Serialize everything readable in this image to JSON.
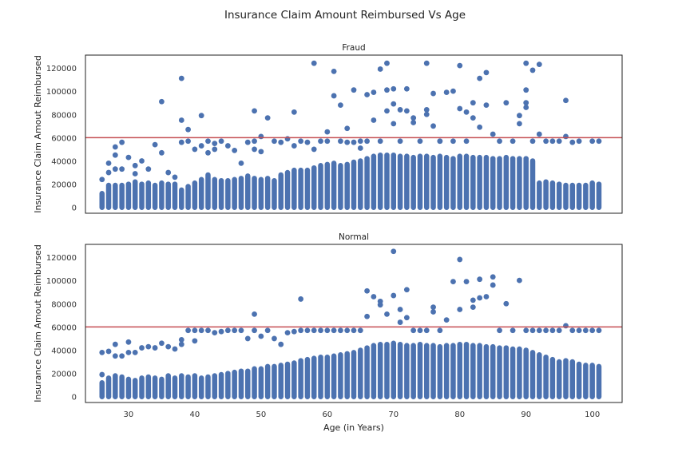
{
  "chart_data": {
    "type": "scatter",
    "title": "Insurance Claim Amount Reimbursed Vs Age",
    "xlabel": "Age (in Years)",
    "ylabel": "Insurance Claim Amout Reimbursed",
    "xlim": [
      23.5,
      104.5
    ],
    "ylim": [
      -5000,
      131000
    ],
    "x_ticks": [
      30,
      40,
      50,
      60,
      70,
      80,
      90,
      100
    ],
    "y_ticks": [
      0,
      20000,
      40000,
      60000,
      80000,
      100000,
      120000
    ],
    "x_tick_labels": [
      "30",
      "40",
      "50",
      "60",
      "70",
      "80",
      "90",
      "100"
    ],
    "y_tick_labels": [
      "0",
      "20000",
      "40000",
      "60000",
      "80000",
      "100000",
      "120000"
    ],
    "reference_line": {
      "y": 60000,
      "color": "#c44e52"
    },
    "point_color": "#4c72b0",
    "grid": false,
    "panels": [
      {
        "title": "Fraud",
        "column_tops": {
          "x": [
            26,
            27,
            28,
            29,
            30,
            31,
            32,
            33,
            34,
            35,
            36,
            37,
            38,
            39,
            40,
            41,
            42,
            43,
            44,
            45,
            46,
            47,
            48,
            49,
            50,
            51,
            52,
            53,
            54,
            55,
            56,
            57,
            58,
            59,
            60,
            61,
            62,
            63,
            64,
            65,
            66,
            67,
            68,
            69,
            70,
            71,
            72,
            73,
            74,
            75,
            76,
            77,
            78,
            79,
            80,
            81,
            82,
            83,
            84,
            85,
            86,
            87,
            88,
            89,
            90,
            91,
            92,
            93,
            94,
            95,
            96,
            97,
            98,
            99,
            100,
            101
          ],
          "y": [
            12000,
            19000,
            19000,
            19000,
            20000,
            22000,
            20000,
            21000,
            19000,
            21000,
            20000,
            20000,
            15000,
            18000,
            21000,
            24000,
            28000,
            24000,
            23000,
            23000,
            24000,
            25000,
            27000,
            25000,
            24000,
            25000,
            23000,
            28000,
            30000,
            32000,
            32000,
            32000,
            34000,
            36000,
            37000,
            38000,
            36000,
            37000,
            39000,
            40000,
            42000,
            44000,
            45000,
            45000,
            45000,
            44000,
            44000,
            43000,
            44000,
            44000,
            43000,
            44000,
            43000,
            42000,
            44000,
            44000,
            43000,
            43000,
            43000,
            42000,
            42000,
            43000,
            42000,
            42000,
            42000,
            40000,
            21000,
            22000,
            21000,
            20000,
            19000,
            19000,
            19000,
            19000,
            21000,
            20000
          ]
        },
        "points": {
          "x": [
            26,
            27,
            27,
            28,
            28,
            28,
            29,
            29,
            30,
            31,
            31,
            32,
            33,
            34,
            35,
            35,
            36,
            37,
            38,
            38,
            38,
            39,
            39,
            40,
            41,
            41,
            42,
            42,
            43,
            43,
            44,
            45,
            46,
            47,
            48,
            49,
            49,
            49,
            50,
            50,
            51,
            52,
            53,
            54,
            55,
            55,
            56,
            57,
            58,
            58,
            59,
            60,
            60,
            61,
            61,
            62,
            62,
            63,
            63,
            64,
            64,
            65,
            65,
            66,
            66,
            67,
            67,
            68,
            68,
            69,
            69,
            69,
            70,
            70,
            70,
            71,
            71,
            72,
            72,
            73,
            73,
            74,
            75,
            75,
            75,
            76,
            76,
            77,
            77,
            78,
            79,
            79,
            80,
            80,
            81,
            81,
            82,
            82,
            83,
            83,
            84,
            84,
            85,
            86,
            87,
            88,
            89,
            89,
            90,
            90,
            90,
            90,
            91,
            91,
            92,
            92,
            93,
            94,
            95,
            96,
            96,
            97,
            98,
            100,
            101
          ],
          "y": [
            24000,
            30000,
            38000,
            45000,
            52000,
            33000,
            56000,
            33000,
            43000,
            36000,
            29000,
            40000,
            33000,
            54000,
            91000,
            47000,
            30000,
            26000,
            111000,
            75000,
            56000,
            67000,
            57000,
            50000,
            79000,
            53000,
            57000,
            47000,
            55000,
            50000,
            57000,
            53000,
            49000,
            38000,
            56000,
            83000,
            57000,
            50000,
            61000,
            48000,
            77000,
            57000,
            56000,
            59000,
            82000,
            53000,
            57000,
            56000,
            124000,
            50000,
            57000,
            65000,
            57000,
            117000,
            96000,
            88000,
            57000,
            68000,
            56000,
            101000,
            56000,
            57000,
            51000,
            97000,
            57000,
            99000,
            75000,
            119000,
            57000,
            124000,
            101000,
            83000,
            72000,
            102000,
            89000,
            84000,
            57000,
            102000,
            83000,
            77000,
            73000,
            57000,
            124000,
            84000,
            80000,
            70000,
            98000,
            57000,
            57000,
            99000,
            57000,
            100000,
            85000,
            122000,
            82000,
            57000,
            90000,
            77000,
            111000,
            69000,
            116000,
            88000,
            63000,
            57000,
            90000,
            57000,
            79000,
            72000,
            124000,
            101000,
            90000,
            86000,
            118000,
            57000,
            123000,
            63000,
            57000,
            57000,
            57000,
            92000,
            61000,
            56000,
            57000,
            57000,
            57000
          ]
        }
      },
      {
        "title": "Normal",
        "column_tops": {
          "x": [
            26,
            27,
            28,
            29,
            30,
            31,
            32,
            33,
            34,
            35,
            36,
            37,
            38,
            39,
            40,
            41,
            42,
            43,
            44,
            45,
            46,
            47,
            48,
            49,
            50,
            51,
            52,
            53,
            54,
            55,
            56,
            57,
            58,
            59,
            60,
            61,
            62,
            63,
            64,
            65,
            66,
            67,
            68,
            69,
            70,
            71,
            72,
            73,
            74,
            75,
            76,
            77,
            78,
            79,
            80,
            81,
            82,
            83,
            84,
            85,
            86,
            87,
            88,
            89,
            90,
            91,
            92,
            93,
            94,
            95,
            96,
            97,
            98,
            99,
            100,
            101
          ],
          "y": [
            12000,
            16000,
            18000,
            17000,
            15000,
            14000,
            16000,
            17000,
            16000,
            15000,
            18000,
            16000,
            18000,
            17000,
            18000,
            16000,
            17000,
            18000,
            19000,
            20000,
            21000,
            22000,
            22000,
            24000,
            24000,
            26000,
            26000,
            27000,
            28000,
            29000,
            31000,
            32000,
            33000,
            34000,
            34000,
            35000,
            36000,
            37000,
            38000,
            40000,
            42000,
            44000,
            45000,
            45000,
            46000,
            45000,
            44000,
            44000,
            45000,
            44000,
            44000,
            43000,
            44000,
            44000,
            45000,
            45000,
            44000,
            44000,
            43000,
            43000,
            42000,
            42000,
            41000,
            41000,
            40000,
            38000,
            36000,
            34000,
            32000,
            30000,
            31000,
            30000,
            28000,
            27000,
            27000,
            26000
          ]
        },
        "points": {
          "x": [
            26,
            26,
            27,
            28,
            28,
            29,
            30,
            30,
            31,
            32,
            33,
            34,
            35,
            36,
            37,
            38,
            38,
            39,
            40,
            40,
            41,
            42,
            43,
            44,
            45,
            46,
            47,
            48,
            49,
            49,
            50,
            51,
            52,
            53,
            54,
            55,
            56,
            56,
            57,
            58,
            59,
            60,
            61,
            62,
            63,
            64,
            65,
            66,
            66,
            67,
            68,
            68,
            69,
            70,
            70,
            71,
            71,
            72,
            72,
            73,
            74,
            75,
            76,
            76,
            77,
            78,
            79,
            80,
            80,
            81,
            82,
            82,
            83,
            83,
            84,
            85,
            85,
            86,
            87,
            88,
            89,
            90,
            91,
            92,
            93,
            94,
            95,
            96,
            97,
            98,
            99,
            100,
            101
          ],
          "y": [
            38000,
            19000,
            39000,
            35000,
            45000,
            35000,
            47000,
            38000,
            38000,
            42000,
            43000,
            42000,
            46000,
            43000,
            41000,
            49000,
            45000,
            57000,
            57000,
            48000,
            57000,
            57000,
            55000,
            56000,
            57000,
            57000,
            57000,
            50000,
            71000,
            57000,
            52000,
            57000,
            50000,
            45000,
            55000,
            56000,
            84000,
            57000,
            57000,
            57000,
            57000,
            57000,
            57000,
            57000,
            57000,
            57000,
            57000,
            91000,
            69000,
            86000,
            82000,
            79000,
            71000,
            125000,
            87000,
            75000,
            64000,
            92000,
            68000,
            57000,
            57000,
            57000,
            77000,
            73000,
            57000,
            66000,
            99000,
            118000,
            75000,
            99000,
            77000,
            83000,
            101000,
            85000,
            86000,
            103000,
            96000,
            57000,
            80000,
            57000,
            100000,
            57000,
            57000,
            57000,
            57000,
            57000,
            57000,
            61000,
            57000,
            57000,
            57000,
            57000,
            57000
          ]
        }
      }
    ]
  }
}
